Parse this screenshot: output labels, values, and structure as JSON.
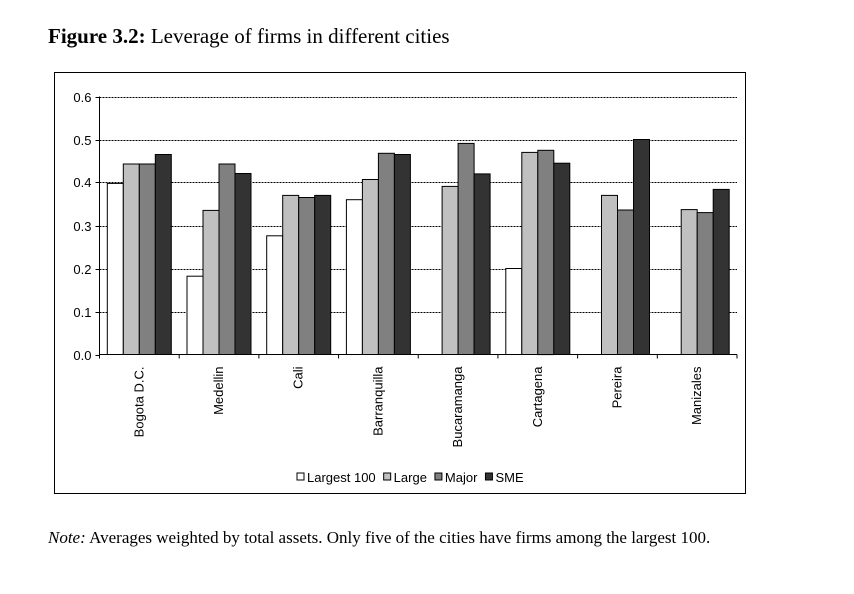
{
  "figure": {
    "label": "Figure 3.2:",
    "title": "Leverage of firms in different cities"
  },
  "note": {
    "label": "Note:",
    "text": "Averages weighted by total assets.  Only five of the cities have firms among the largest 100."
  },
  "chart_data": {
    "type": "bar",
    "title": "Leverage of firms in different cities",
    "xlabel": "",
    "ylabel": "",
    "ylim": [
      0,
      0.6
    ],
    "yticks": [
      "0.0",
      "0.1",
      "0.2",
      "0.3",
      "0.4",
      "0.5",
      "0.6"
    ],
    "grid": true,
    "legend_position": "bottom",
    "categories": [
      "Bogota D.C.",
      "Medellin",
      "Cali",
      "Barranquilla",
      "Bucaramanga",
      "Cartagena",
      "Pereira",
      "Manizales"
    ],
    "series": [
      {
        "name": "Largest 100",
        "color": "#ffffff",
        "values": [
          0.398,
          0.182,
          0.276,
          0.36,
          null,
          0.2,
          null,
          null
        ]
      },
      {
        "name": "Large",
        "color": "#c0c0c0",
        "values": [
          0.443,
          0.335,
          0.37,
          0.407,
          0.391,
          0.47,
          0.37,
          0.337
        ]
      },
      {
        "name": "Major",
        "color": "#808080",
        "values": [
          0.443,
          0.443,
          0.365,
          0.468,
          0.491,
          0.475,
          0.336,
          0.33
        ]
      },
      {
        "name": "SME",
        "color": "#333333",
        "values": [
          0.465,
          0.421,
          0.37,
          0.465,
          0.42,
          0.445,
          0.5,
          0.384
        ]
      }
    ]
  }
}
